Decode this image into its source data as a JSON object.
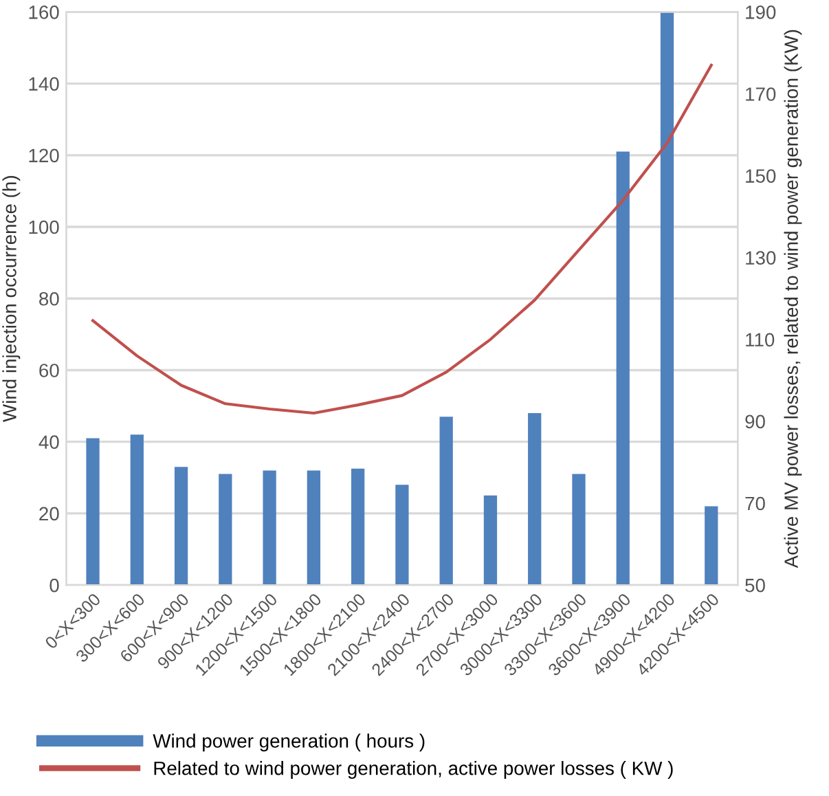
{
  "chart_data": {
    "type": "bar",
    "ylabel": "Wind injection occurrence (h)",
    "y2label": "Active MV power losses, related to wind power generation (KW)",
    "categories": [
      "0<X<300",
      "300<X<600",
      "600<X<900",
      "900<X<1200",
      "1200<X<1500",
      "1500<X<1800",
      "1800<X<2100",
      "2100<X<2400",
      "2400<X<2700",
      "2700<X<3000",
      "3000<X<3300",
      "3300<X<3600",
      "3600<X<3900",
      "4900<X<4200",
      "4200<X<4500"
    ],
    "series": [
      {
        "name": "Wind power generation ( hours )",
        "color": "#4f81bd",
        "values": [
          41,
          42,
          33,
          31,
          32,
          32,
          32.5,
          28,
          47,
          25,
          48,
          31,
          121,
          160,
          22
        ]
      },
      {
        "name": "Related to wind power generation, active power losses ( KW )",
        "type": "line",
        "axis": "y2",
        "color": "#c0504d",
        "values": [
          114.6,
          106,
          98.8,
          94.3,
          93,
          92,
          94,
          96.3,
          102,
          110,
          119.6,
          131.8,
          144,
          158,
          177
        ]
      }
    ],
    "ylim": [
      0,
      160
    ],
    "yticks": [
      0,
      20,
      40,
      60,
      80,
      100,
      120,
      140,
      160
    ],
    "y2lim": [
      50,
      190
    ],
    "y2ticks": [
      50,
      70,
      90,
      110,
      130,
      150,
      170,
      190
    ],
    "grid": "y",
    "legend": "bottom",
    "marker": "none",
    "line_style": "solid"
  }
}
